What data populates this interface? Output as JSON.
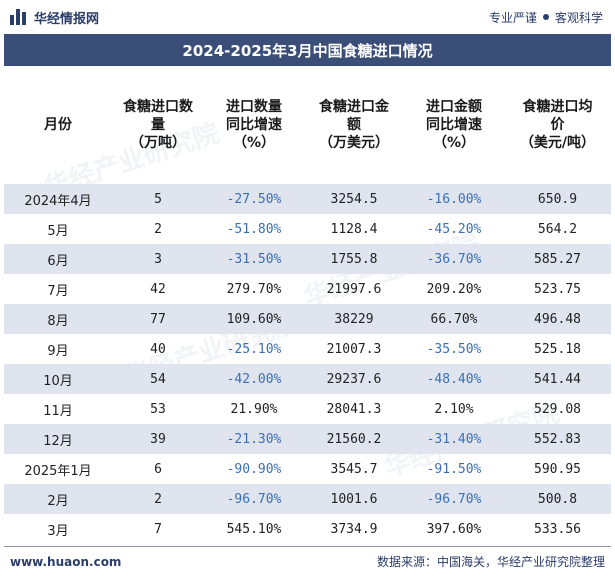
{
  "header": {
    "brand": "华经情报网",
    "slogan_left": "专业严谨",
    "slogan_right": "客观科学"
  },
  "title": "2024-2025年3月中国食糖进口情况",
  "table": {
    "columns": [
      "月份",
      "食糖进口数量（万吨）",
      "进口数量同比增速（%）",
      "食糖进口金额（万美元）",
      "进口金额同比增速（%）",
      "食糖进口均价（美元/吨）"
    ],
    "rows": [
      {
        "month": "2024年4月",
        "qty": "5",
        "qty_yoy": "-27.50%",
        "amt": "3254.5",
        "amt_yoy": "-16.00%",
        "price": "650.9"
      },
      {
        "month": "5月",
        "qty": "2",
        "qty_yoy": "-51.80%",
        "amt": "1128.4",
        "amt_yoy": "-45.20%",
        "price": "564.2"
      },
      {
        "month": "6月",
        "qty": "3",
        "qty_yoy": "-31.50%",
        "amt": "1755.8",
        "amt_yoy": "-36.70%",
        "price": "585.27"
      },
      {
        "month": "7月",
        "qty": "42",
        "qty_yoy": "279.70%",
        "amt": "21997.6",
        "amt_yoy": "209.20%",
        "price": "523.75"
      },
      {
        "month": "8月",
        "qty": "77",
        "qty_yoy": "109.60%",
        "amt": "38229",
        "amt_yoy": "66.70%",
        "price": "496.48"
      },
      {
        "month": "9月",
        "qty": "40",
        "qty_yoy": "-25.10%",
        "amt": "21007.3",
        "amt_yoy": "-35.50%",
        "price": "525.18"
      },
      {
        "month": "10月",
        "qty": "54",
        "qty_yoy": "-42.00%",
        "amt": "29237.6",
        "amt_yoy": "-48.40%",
        "price": "541.44"
      },
      {
        "month": "11月",
        "qty": "53",
        "qty_yoy": "21.90%",
        "amt": "28041.3",
        "amt_yoy": "2.10%",
        "price": "529.08"
      },
      {
        "month": "12月",
        "qty": "39",
        "qty_yoy": "-21.30%",
        "amt": "21560.2",
        "amt_yoy": "-31.40%",
        "price": "552.83"
      },
      {
        "month": "2025年1月",
        "qty": "6",
        "qty_yoy": "-90.90%",
        "amt": "3545.7",
        "amt_yoy": "-91.50%",
        "price": "590.95"
      },
      {
        "month": "2月",
        "qty": "2",
        "qty_yoy": "-96.70%",
        "amt": "1001.6",
        "amt_yoy": "-96.70%",
        "price": "500.8"
      },
      {
        "month": "3月",
        "qty": "7",
        "qty_yoy": "545.10%",
        "amt": "3734.9",
        "amt_yoy": "397.60%",
        "price": "533.56"
      }
    ]
  },
  "footer": {
    "url": "www.huaon.com",
    "source": "数据来源：中国海关，华经产业研究院整理"
  },
  "watermark": "华经产业研究院",
  "colors": {
    "title_bg": "#3b4e78",
    "row_alt": "#dfe4ef",
    "negative": "#3b6fb6"
  }
}
